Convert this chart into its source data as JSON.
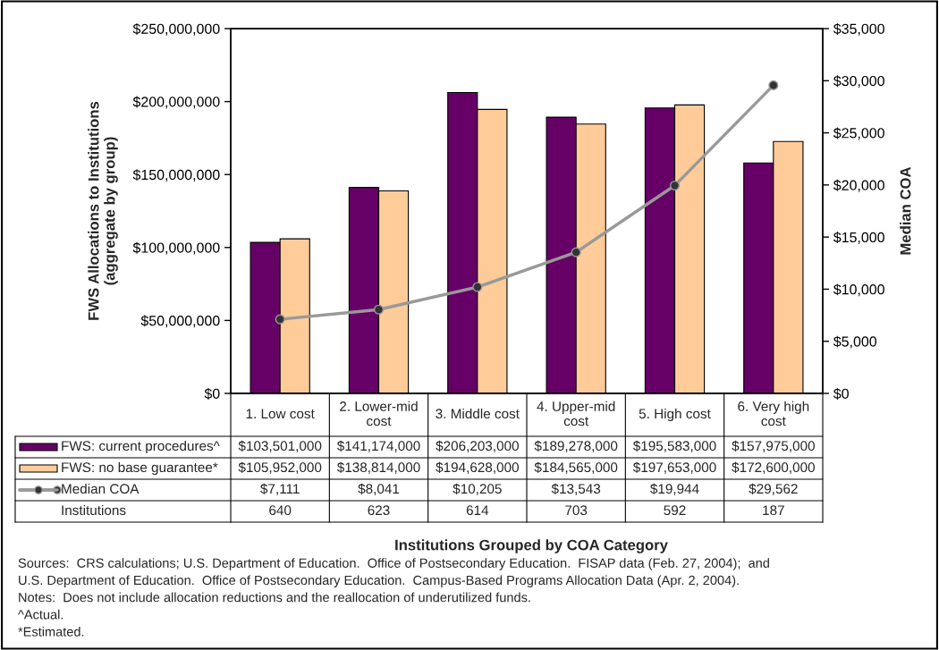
{
  "chart_data": {
    "type": "bar",
    "ylabel": "FWS Allocations to Institutions\n(aggregate by group)",
    "y2label": "Median COA",
    "categories": [
      "1. Low cost",
      "2. Lower-mid cost",
      "3. Middle cost",
      "4. Upper-mid cost",
      "5. High cost",
      "6. Very high cost"
    ],
    "series": [
      {
        "name": "FWS: current procedures^",
        "color": "#660066",
        "values": [
          103501000,
          141174000,
          206203000,
          189278000,
          195583000,
          157975000
        ],
        "value_labels": [
          "$103,501,000",
          "$141,174,000",
          "$206,203,000",
          "$189,278,000",
          "$195,583,000",
          "$157,975,000"
        ]
      },
      {
        "name": "FWS: no base guarantee*",
        "color": "#ffcc99",
        "values": [
          105952000,
          138814000,
          194628000,
          184565000,
          197653000,
          172600000
        ],
        "value_labels": [
          "$105,952,000",
          "$138,814,000",
          "$194,628,000",
          "$184,565,000",
          "$197,653,000",
          "$172,600,000"
        ]
      },
      {
        "name": "Median COA",
        "type": "line",
        "axis": "y2",
        "color": "#999999",
        "marker": "circle",
        "values": [
          7111,
          8041,
          10205,
          13543,
          19944,
          29562
        ],
        "value_labels": [
          "$7,111",
          "$8,041",
          "$10,205",
          "$13,543",
          "$19,944",
          "$29,562"
        ]
      }
    ],
    "ylim": [
      0,
      250000000
    ],
    "yticks": [
      {
        "value": 0,
        "label": "$0"
      },
      {
        "value": 50000000,
        "label": "$50,000,000"
      },
      {
        "value": 100000000,
        "label": "$100,000,000"
      },
      {
        "value": 150000000,
        "label": "$150,000,000"
      },
      {
        "value": 200000000,
        "label": "$200,000,000"
      },
      {
        "value": 250000000,
        "label": "$250,000,000"
      }
    ],
    "y2lim": [
      0,
      35000
    ],
    "y2ticks": [
      {
        "value": 0,
        "label": "$0"
      },
      {
        "value": 5000,
        "label": "$5,000"
      },
      {
        "value": 10000,
        "label": "$10,000"
      },
      {
        "value": 15000,
        "label": "$15,000"
      },
      {
        "value": 20000,
        "label": "$20,000"
      },
      {
        "value": 25000,
        "label": "$25,000"
      },
      {
        "value": 30000,
        "label": "$30,000"
      },
      {
        "value": 35000,
        "label": "$35,000"
      }
    ],
    "grid": false,
    "legend": "bottom",
    "annotations": [
      "Institutions Grouped by COA Category",
      "Sources:  CRS calculations; U.S. Department of Education.  Office of Postsecondary Education.  FISAP data (Feb. 27, 2004);  and",
      "U.S. Department of Education.  Office of Postsecondary Education.  Campus-Based Programs Allocation Data (Apr. 2, 2004).",
      "Notes:  Does not include allocation reductions and the reallocation of underutilized funds.",
      "^Actual.",
      "*Estimated.",
      "Institutions",
      "640",
      "623",
      "614",
      "703",
      "592",
      "187"
    ]
  }
}
